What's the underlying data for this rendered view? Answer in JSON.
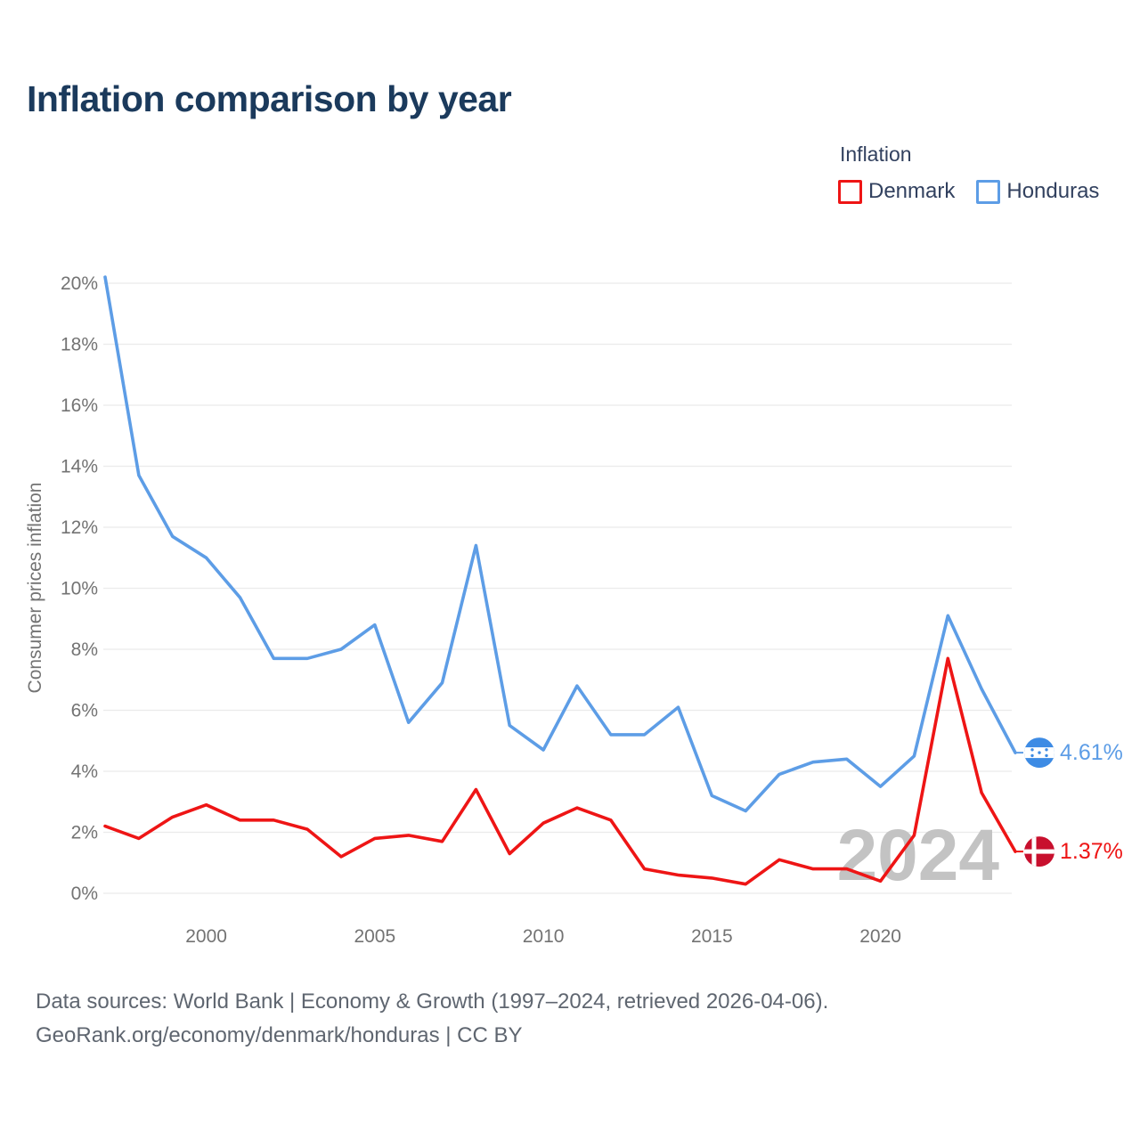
{
  "title": "Inflation comparison by year",
  "legend": {
    "title": "Inflation",
    "items": [
      {
        "label": "Denmark",
        "color": "#ee1515"
      },
      {
        "label": "Honduras",
        "color": "#5d9de6"
      }
    ]
  },
  "watermark": "2024",
  "end_labels": {
    "honduras": "4.61%",
    "denmark": "1.37%"
  },
  "footer": {
    "line1": "Data sources: World Bank | Economy & Growth (1997–2024, retrieved 2026-04-06).",
    "line2": "GeoRank.org/economy/denmark/honduras | CC BY"
  },
  "colors": {
    "denmark_line": "#ee1515",
    "honduras_line": "#5d9de6",
    "denmark_flag": "#c8102e",
    "honduras_flag": "#3d8be4",
    "grid": "#ebebeb",
    "axis_text": "#737373",
    "watermark": "#c3c3c3",
    "title": "#1b3a5c",
    "legend_text": "#32415f",
    "footer_text": "#5f6670"
  },
  "chart_data": {
    "type": "line",
    "title": "Inflation comparison by year",
    "xlabel": "",
    "ylabel": "Consumer prices inflation",
    "ylim": [
      0,
      20
    ],
    "ytick_step": 2,
    "ytick_suffix": "%",
    "grid": true,
    "legend_position": "top-right",
    "x": [
      1997,
      1998,
      1999,
      2000,
      2001,
      2002,
      2003,
      2004,
      2005,
      2006,
      2007,
      2008,
      2009,
      2010,
      2011,
      2012,
      2013,
      2014,
      2015,
      2016,
      2017,
      2018,
      2019,
      2020,
      2021,
      2022,
      2023,
      2024
    ],
    "xticks": [
      2000,
      2005,
      2010,
      2015,
      2020
    ],
    "series": [
      {
        "name": "Denmark",
        "color": "#ee1515",
        "values": [
          2.2,
          1.8,
          2.5,
          2.9,
          2.4,
          2.4,
          2.1,
          1.2,
          1.8,
          1.9,
          1.7,
          3.4,
          1.3,
          2.3,
          2.8,
          2.4,
          0.8,
          0.6,
          0.5,
          0.3,
          1.1,
          0.8,
          0.8,
          0.4,
          1.9,
          7.7,
          3.3,
          1.37
        ],
        "end_value": 1.37,
        "end_label": "1.37%"
      },
      {
        "name": "Honduras",
        "color": "#5d9de6",
        "values": [
          20.2,
          13.7,
          11.7,
          11.0,
          9.7,
          7.7,
          7.7,
          8.0,
          8.8,
          5.6,
          6.9,
          11.4,
          5.5,
          4.7,
          6.8,
          5.2,
          5.2,
          6.1,
          3.2,
          2.7,
          3.9,
          4.3,
          4.4,
          3.5,
          4.5,
          9.1,
          6.7,
          4.61
        ],
        "end_value": 4.61,
        "end_label": "4.61%"
      }
    ]
  }
}
